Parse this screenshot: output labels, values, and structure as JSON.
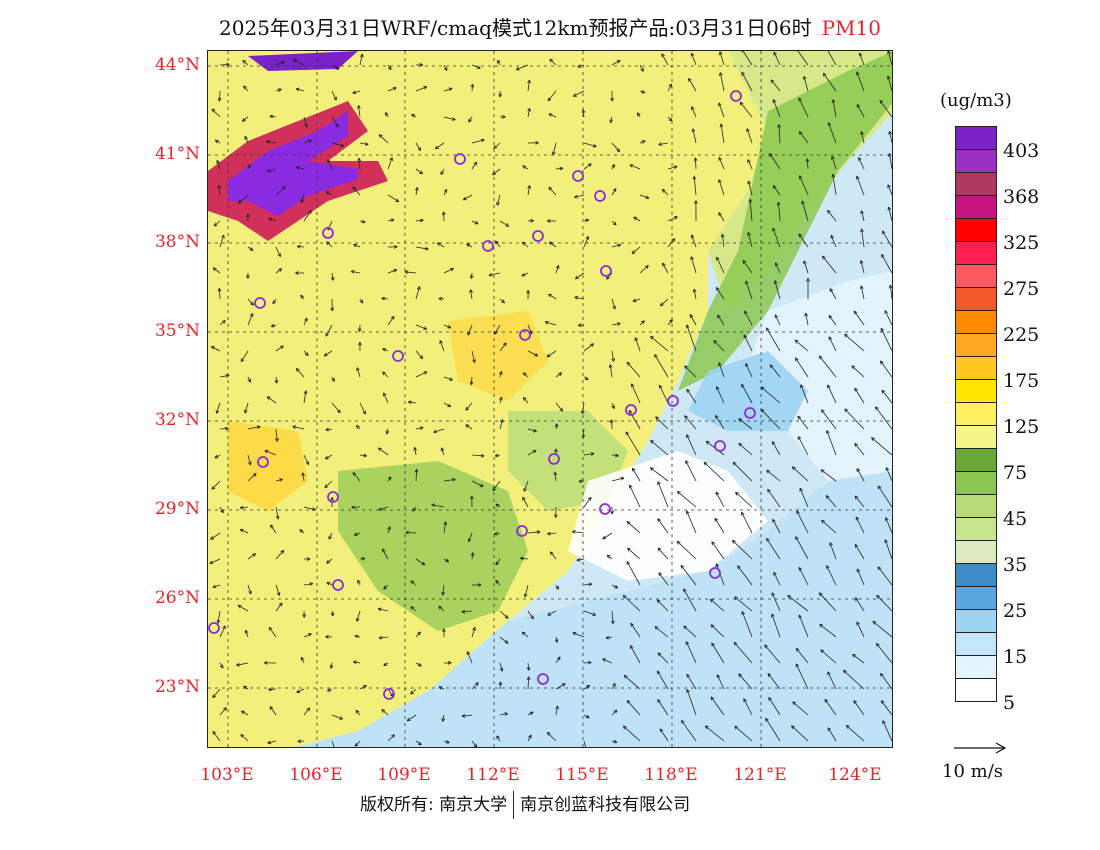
{
  "title": {
    "main": "2025年03月31日WRF/cmaq模式12km预报产品:03月31日06时",
    "species": "PM10"
  },
  "axes": {
    "lat_labels": [
      "44°N",
      "41°N",
      "38°N",
      "35°N",
      "32°N",
      "29°N",
      "26°N",
      "23°N"
    ],
    "lon_labels": [
      "103°E",
      "106°E",
      "109°E",
      "112°E",
      "115°E",
      "118°E",
      "121°E",
      "124°E"
    ]
  },
  "legend": {
    "unit": "(ug/m3)",
    "levels": [
      "403",
      "368",
      "325",
      "275",
      "225",
      "175",
      "125",
      "75",
      "45",
      "35",
      "25",
      "15",
      "5"
    ],
    "colors": [
      "#7b22c8",
      "#9a30c0",
      "#ae3a62",
      "#c71580",
      "#ff0000",
      "#ff2050",
      "#f85a60",
      "#f05a28",
      "#ff8c00",
      "#ffa820",
      "#ffc820",
      "#ffe600",
      "#ffee60",
      "#f5f58a",
      "#6aa83a",
      "#8cc850",
      "#b8dc78",
      "#c8e48c",
      "#dceabe",
      "#3c8cc8",
      "#5aa6dc",
      "#9cd4f2",
      "#c4e6f8",
      "#e4f4fc",
      "#ffffff"
    ]
  },
  "wind_reference": {
    "label": "10 m/s"
  },
  "copyright": {
    "left": "版权所有: 南京大学",
    "right": "南京创蓝科技有限公司"
  },
  "colors": {
    "axis_label": "#e8222a",
    "station_marker": "#8a2be2"
  },
  "icons": {
    "station": "station-circle-icon",
    "wind": "wind-arrow-icon"
  }
}
